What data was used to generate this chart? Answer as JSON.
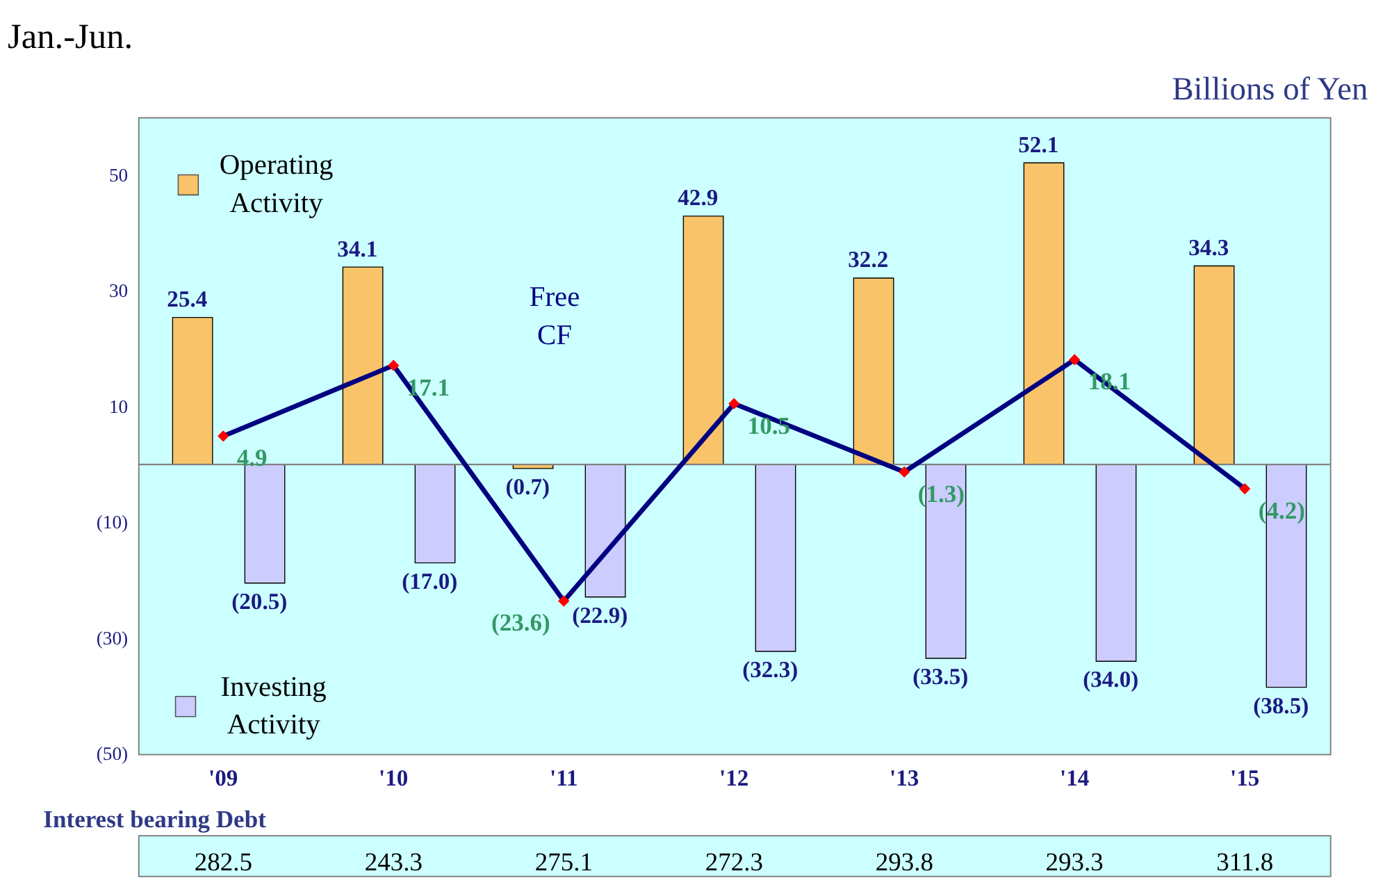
{
  "chart_data": [
    {
      "type": "bar",
      "title": "Jan.-Jun.",
      "ylabel": "Billions of Yen",
      "categories": [
        "'09",
        "'10",
        "'11",
        "'12",
        "'13",
        "'14",
        "'15"
      ],
      "series": [
        {
          "name": "Operating Activity",
          "color": "#f9c36a",
          "values": [
            25.4,
            34.1,
            -0.7,
            42.9,
            32.2,
            52.1,
            34.3
          ],
          "value_labels": [
            "25.4",
            "34.1",
            "(0.7)",
            "42.9",
            "32.2",
            "52.1",
            "34.3"
          ]
        },
        {
          "name": "Investing Activity",
          "color": "#ccccff",
          "values": [
            -20.5,
            -17.0,
            -22.9,
            -32.3,
            -33.5,
            -34.0,
            -38.5
          ],
          "value_labels": [
            "(20.5)",
            "(17.0)",
            "(22.9)",
            "(32.3)",
            "(33.5)",
            "(34.0)",
            "(38.5)"
          ]
        },
        {
          "name": "Free CF",
          "type": "line",
          "color": "#000080",
          "marker": "diamond",
          "values": [
            4.9,
            17.1,
            -23.6,
            10.5,
            -1.3,
            18.1,
            -4.2
          ],
          "value_labels": [
            "4.9",
            "17.1",
            "(23.6)",
            "10.5",
            "(1.3)",
            "18.1",
            "(4.2)"
          ]
        }
      ],
      "ylim": [
        -50,
        60
      ],
      "yticks": [
        50,
        30,
        10,
        {
          "value": -10,
          "label": "(10)"
        },
        {
          "value": -30,
          "label": "(30)"
        },
        {
          "value": -50,
          "label": "(50)"
        }
      ],
      "ref_lines": [
        {
          "axis": "y",
          "value": 0,
          "color": "#808080"
        }
      ],
      "grid": false,
      "legend": "left"
    },
    {
      "type": "other",
      "title": "Interest bearing Debt",
      "categories": [
        null,
        null,
        null,
        null,
        null,
        null,
        null
      ],
      "values": [
        282.5,
        243.3,
        275.1,
        272.3,
        293.8,
        293.3,
        311.8
      ],
      "data_labels": true
    }
  ]
}
